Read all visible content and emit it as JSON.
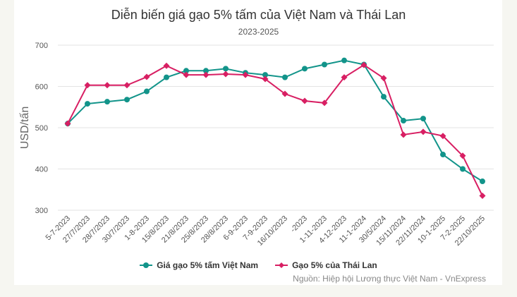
{
  "chart_data": {
    "type": "line",
    "title": "Diễn biến giá gạo 5% tấm của Việt Nam và Thái Lan",
    "subtitle": "2023-2025",
    "ylabel": "USD/tấn",
    "xlabel": "",
    "ylim": [
      300,
      700
    ],
    "yticks": [
      300,
      400,
      500,
      600,
      700
    ],
    "grid": true,
    "legend": "bottom",
    "categories": [
      "5-7-2023",
      "27/7/2023",
      "28/7/2023",
      "30/7/2023",
      "1-8-2023",
      "15/8/2023",
      "21/8/2023",
      "25/8/2023",
      "28/8/2023",
      "6-9-2023",
      "7-9-2023",
      "16/10/2023",
      "-2023",
      "1-11-2023",
      "4-12-2023",
      "11-1-2024",
      "30/5/2024",
      "15/11/2024",
      "22/11/2024",
      "10-1-2025",
      "7-2-2025",
      "22/10/2025"
    ],
    "series": [
      {
        "name": "Giá gạo 5% tấm Việt Nam",
        "color": "#12948a",
        "marker": "circle",
        "values": [
          510,
          558,
          563,
          568,
          588,
          622,
          638,
          638,
          643,
          633,
          628,
          622,
          643,
          653,
          663,
          653,
          575,
          517,
          522,
          435,
          400,
          370
        ]
      },
      {
        "name": "Gạo 5% của Thái Lan",
        "color": "#d81f63",
        "marker": "diamond",
        "values": [
          510,
          603,
          603,
          603,
          623,
          650,
          628,
          628,
          630,
          628,
          618,
          582,
          565,
          560,
          622,
          652,
          620,
          483,
          490,
          480,
          432,
          335
        ]
      }
    ]
  },
  "source": "Nguồn: Hiệp hội Lương thực Việt Nam - VnExpress"
}
